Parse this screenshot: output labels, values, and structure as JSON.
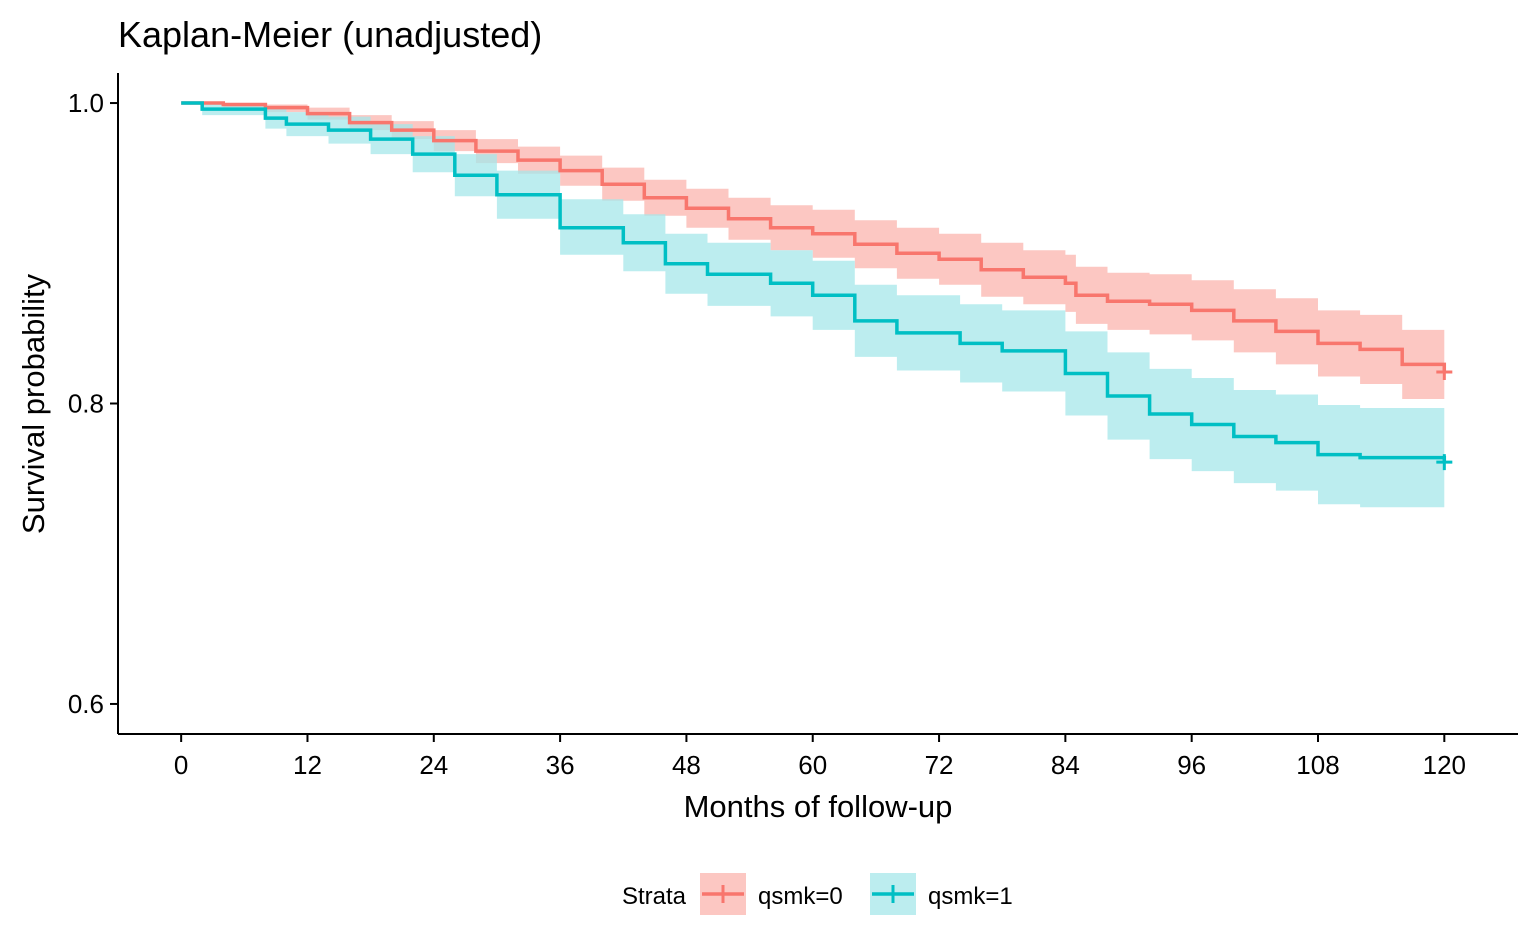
{
  "chart_data": {
    "type": "line",
    "title": "Kaplan-Meier (unadjusted)",
    "xlabel": "Months of follow-up",
    "ylabel": "Survival probability",
    "xlim": [
      -6,
      127
    ],
    "ylim": [
      0.58,
      1.02
    ],
    "x_ticks": [
      0,
      12,
      24,
      36,
      48,
      60,
      72,
      84,
      96,
      108,
      120
    ],
    "y_ticks": [
      0.6,
      0.8,
      1.0
    ],
    "y_tick_labels": [
      "0.6",
      "0.8",
      "1.0"
    ],
    "grid": false,
    "legend": {
      "title": "Strata",
      "position": "bottom"
    },
    "series": [
      {
        "name": "qsmk=0",
        "color": "#F8766D",
        "ribbon_color": "#FBB4AE",
        "censor_mark_at": 120,
        "points": [
          {
            "x": 0,
            "y": 1.0,
            "lo": 1.0,
            "hi": 1.0
          },
          {
            "x": 4,
            "y": 0.999,
            "lo": 0.997,
            "hi": 1.0
          },
          {
            "x": 8,
            "y": 0.997,
            "lo": 0.994,
            "hi": 0.999
          },
          {
            "x": 12,
            "y": 0.993,
            "lo": 0.989,
            "hi": 0.997
          },
          {
            "x": 16,
            "y": 0.987,
            "lo": 0.982,
            "hi": 0.992
          },
          {
            "x": 20,
            "y": 0.982,
            "lo": 0.976,
            "hi": 0.988
          },
          {
            "x": 24,
            "y": 0.975,
            "lo": 0.968,
            "hi": 0.982
          },
          {
            "x": 28,
            "y": 0.968,
            "lo": 0.96,
            "hi": 0.976
          },
          {
            "x": 32,
            "y": 0.962,
            "lo": 0.953,
            "hi": 0.971
          },
          {
            "x": 36,
            "y": 0.955,
            "lo": 0.945,
            "hi": 0.965
          },
          {
            "x": 40,
            "y": 0.946,
            "lo": 0.935,
            "hi": 0.957
          },
          {
            "x": 44,
            "y": 0.937,
            "lo": 0.925,
            "hi": 0.949
          },
          {
            "x": 48,
            "y": 0.93,
            "lo": 0.917,
            "hi": 0.943
          },
          {
            "x": 52,
            "y": 0.923,
            "lo": 0.909,
            "hi": 0.937
          },
          {
            "x": 56,
            "y": 0.917,
            "lo": 0.902,
            "hi": 0.932
          },
          {
            "x": 60,
            "y": 0.913,
            "lo": 0.897,
            "hi": 0.929
          },
          {
            "x": 64,
            "y": 0.906,
            "lo": 0.89,
            "hi": 0.922
          },
          {
            "x": 68,
            "y": 0.9,
            "lo": 0.883,
            "hi": 0.917
          },
          {
            "x": 72,
            "y": 0.896,
            "lo": 0.879,
            "hi": 0.913
          },
          {
            "x": 76,
            "y": 0.889,
            "lo": 0.871,
            "hi": 0.907
          },
          {
            "x": 80,
            "y": 0.884,
            "lo": 0.866,
            "hi": 0.902
          },
          {
            "x": 84,
            "y": 0.88,
            "lo": 0.861,
            "hi": 0.899
          },
          {
            "x": 85,
            "y": 0.872,
            "lo": 0.853,
            "hi": 0.891
          },
          {
            "x": 88,
            "y": 0.868,
            "lo": 0.849,
            "hi": 0.887
          },
          {
            "x": 92,
            "y": 0.866,
            "lo": 0.846,
            "hi": 0.886
          },
          {
            "x": 96,
            "y": 0.862,
            "lo": 0.842,
            "hi": 0.882
          },
          {
            "x": 100,
            "y": 0.855,
            "lo": 0.834,
            "hi": 0.876
          },
          {
            "x": 104,
            "y": 0.848,
            "lo": 0.826,
            "hi": 0.87
          },
          {
            "x": 108,
            "y": 0.84,
            "lo": 0.818,
            "hi": 0.862
          },
          {
            "x": 112,
            "y": 0.836,
            "lo": 0.813,
            "hi": 0.859
          },
          {
            "x": 116,
            "y": 0.826,
            "lo": 0.803,
            "hi": 0.849
          },
          {
            "x": 120,
            "y": 0.821,
            "lo": 0.8,
            "hi": 0.843
          }
        ]
      },
      {
        "name": "qsmk=1",
        "color": "#00BFC4",
        "ribbon_color": "#A6E7E9",
        "censor_mark_at": 120,
        "points": [
          {
            "x": 0,
            "y": 1.0,
            "lo": 1.0,
            "hi": 1.0
          },
          {
            "x": 2,
            "y": 0.996,
            "lo": 0.992,
            "hi": 0.999
          },
          {
            "x": 8,
            "y": 0.99,
            "lo": 0.983,
            "hi": 0.997
          },
          {
            "x": 10,
            "y": 0.986,
            "lo": 0.978,
            "hi": 0.994
          },
          {
            "x": 14,
            "y": 0.982,
            "lo": 0.973,
            "hi": 0.991
          },
          {
            "x": 18,
            "y": 0.976,
            "lo": 0.966,
            "hi": 0.986
          },
          {
            "x": 22,
            "y": 0.966,
            "lo": 0.954,
            "hi": 0.978
          },
          {
            "x": 26,
            "y": 0.952,
            "lo": 0.938,
            "hi": 0.966
          },
          {
            "x": 30,
            "y": 0.939,
            "lo": 0.923,
            "hi": 0.955
          },
          {
            "x": 36,
            "y": 0.917,
            "lo": 0.899,
            "hi": 0.936
          },
          {
            "x": 42,
            "y": 0.907,
            "lo": 0.888,
            "hi": 0.926
          },
          {
            "x": 46,
            "y": 0.893,
            "lo": 0.873,
            "hi": 0.913
          },
          {
            "x": 50,
            "y": 0.886,
            "lo": 0.865,
            "hi": 0.907
          },
          {
            "x": 56,
            "y": 0.88,
            "lo": 0.858,
            "hi": 0.902
          },
          {
            "x": 60,
            "y": 0.872,
            "lo": 0.849,
            "hi": 0.895
          },
          {
            "x": 64,
            "y": 0.855,
            "lo": 0.831,
            "hi": 0.879
          },
          {
            "x": 68,
            "y": 0.847,
            "lo": 0.822,
            "hi": 0.872
          },
          {
            "x": 74,
            "y": 0.84,
            "lo": 0.814,
            "hi": 0.866
          },
          {
            "x": 78,
            "y": 0.835,
            "lo": 0.808,
            "hi": 0.862
          },
          {
            "x": 84,
            "y": 0.82,
            "lo": 0.792,
            "hi": 0.848
          },
          {
            "x": 88,
            "y": 0.805,
            "lo": 0.776,
            "hi": 0.834
          },
          {
            "x": 92,
            "y": 0.793,
            "lo": 0.763,
            "hi": 0.823
          },
          {
            "x": 96,
            "y": 0.786,
            "lo": 0.755,
            "hi": 0.817
          },
          {
            "x": 100,
            "y": 0.778,
            "lo": 0.747,
            "hi": 0.809
          },
          {
            "x": 104,
            "y": 0.774,
            "lo": 0.742,
            "hi": 0.806
          },
          {
            "x": 108,
            "y": 0.766,
            "lo": 0.733,
            "hi": 0.799
          },
          {
            "x": 112,
            "y": 0.764,
            "lo": 0.731,
            "hi": 0.797
          },
          {
            "x": 120,
            "y": 0.761,
            "lo": 0.722,
            "hi": 0.8
          }
        ]
      }
    ]
  }
}
